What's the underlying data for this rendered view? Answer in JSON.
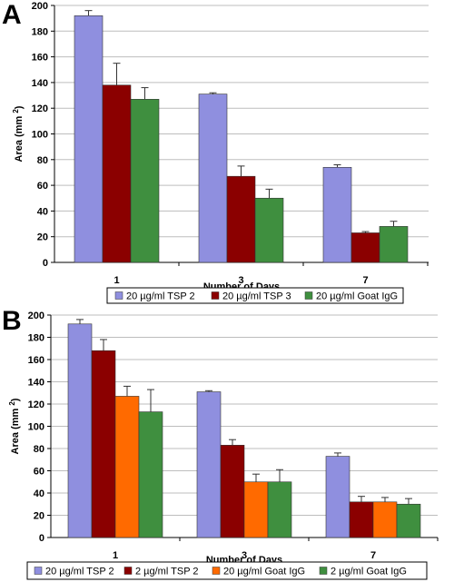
{
  "chart_data": [
    {
      "panel": "A",
      "type": "bar",
      "categories": [
        "1",
        "3",
        "7"
      ],
      "xlabel": "Number of Days",
      "ylabel": "Area (mm",
      "ylabel_sup": "2",
      "ylabel_close": ")",
      "ylim": [
        0,
        200
      ],
      "yticks": [
        0,
        20,
        40,
        60,
        80,
        100,
        120,
        140,
        160,
        180,
        200
      ],
      "grid": "horizontal",
      "legend_position": "bottom",
      "series": [
        {
          "name": "20 µg/ml TSP 2",
          "color": "#8f8fdf",
          "values": [
            192,
            131,
            74
          ],
          "errors": [
            4,
            1,
            2
          ]
        },
        {
          "name": "20 µg/ml TSP 3",
          "color": "#8b0000",
          "values": [
            138,
            67,
            23
          ],
          "errors": [
            17,
            8,
            1
          ]
        },
        {
          "name": "20 µg/ml Goat IgG",
          "color": "#3f8f3f",
          "values": [
            127,
            50,
            28
          ],
          "errors": [
            9,
            7,
            4
          ]
        }
      ]
    },
    {
      "panel": "B",
      "type": "bar",
      "categories": [
        "1",
        "3",
        "7"
      ],
      "xlabel": "Number of Days",
      "ylabel": "Area (mm",
      "ylabel_sup": "2",
      "ylabel_close": ")",
      "ylim": [
        0,
        200
      ],
      "yticks": [
        0,
        20,
        40,
        60,
        80,
        100,
        120,
        140,
        160,
        180,
        200
      ],
      "grid": "horizontal",
      "legend_position": "bottom",
      "series": [
        {
          "name": "20 µg/ml TSP 2",
          "color": "#8f8fdf",
          "values": [
            192,
            131,
            73
          ],
          "errors": [
            4,
            1,
            3
          ]
        },
        {
          "name": "2 µg/ml TSP 2",
          "color": "#8b0000",
          "values": [
            168,
            83,
            32
          ],
          "errors": [
            10,
            5,
            5
          ]
        },
        {
          "name": "20 µg/ml Goat IgG",
          "color": "#ff6a00",
          "values": [
            127,
            50,
            32
          ],
          "errors": [
            9,
            7,
            4
          ]
        },
        {
          "name": "2 µg/ml Goat IgG",
          "color": "#3f8f3f",
          "values": [
            113,
            50,
            30
          ],
          "errors": [
            20,
            11,
            5
          ]
        }
      ]
    }
  ]
}
